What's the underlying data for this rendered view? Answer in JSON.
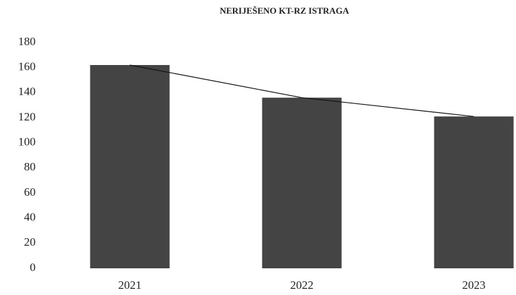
{
  "chart_data": {
    "type": "bar",
    "title": "NERIJEŠENO KT-RZ ISTRAGA",
    "categories": [
      "2021",
      "2022",
      "2023"
    ],
    "values": [
      162,
      136,
      121
    ],
    "color": "#444444",
    "trend_line": true,
    "line_color": "#111111",
    "ylim": [
      0,
      180
    ],
    "yticks": [
      0,
      20,
      40,
      60,
      80,
      100,
      120,
      140,
      160,
      180
    ],
    "grid": false
  }
}
